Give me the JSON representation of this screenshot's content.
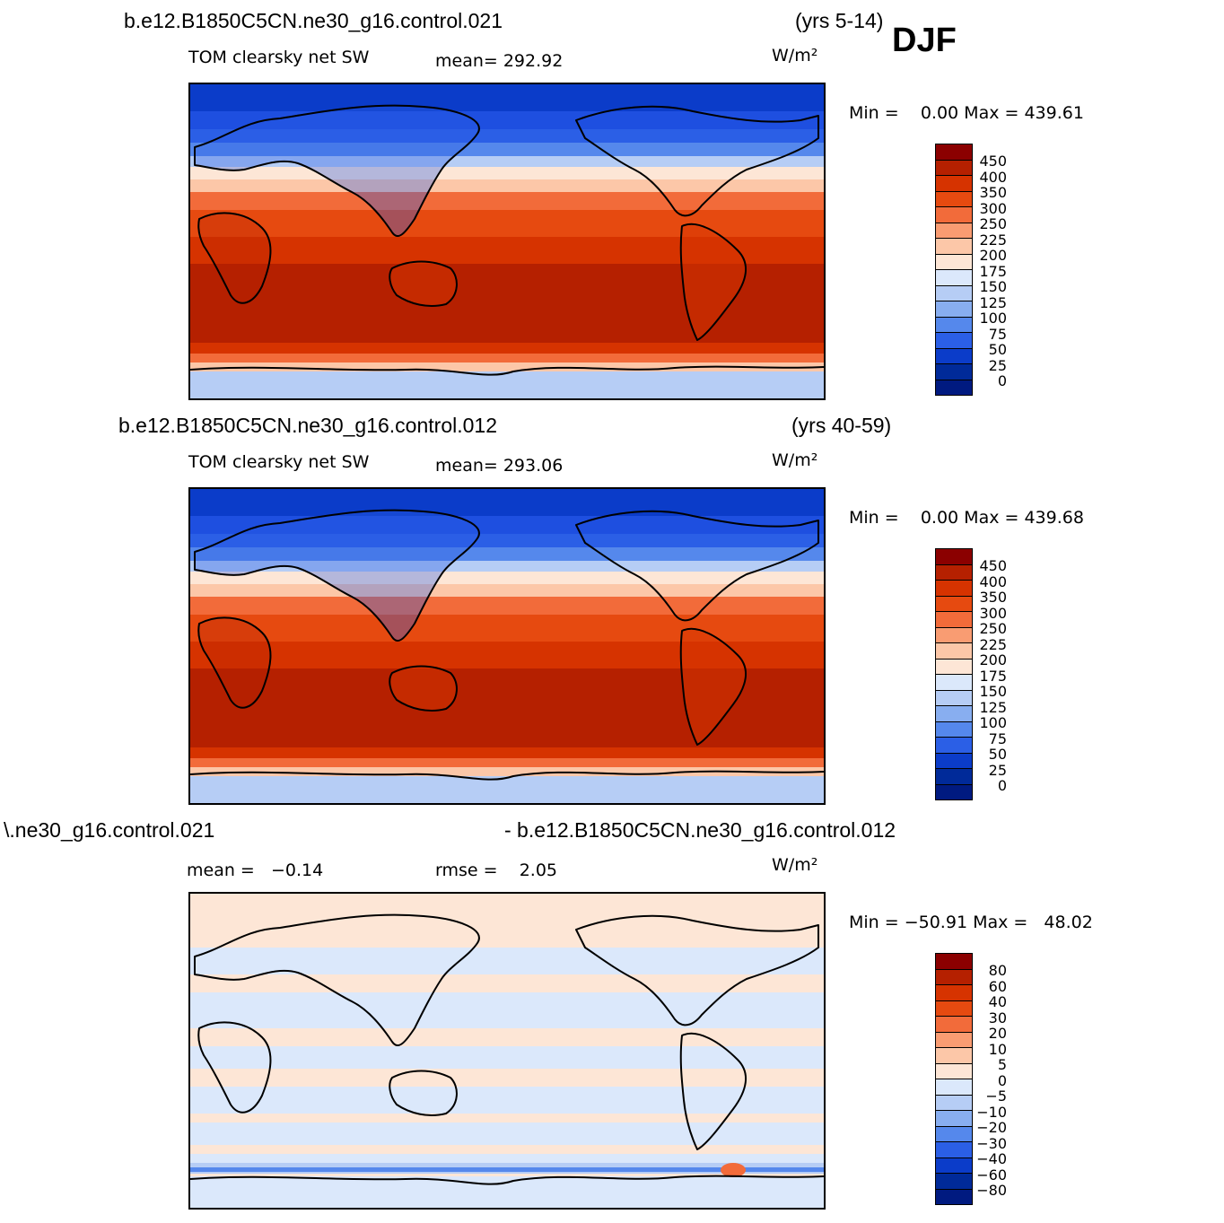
{
  "season": "DJF",
  "chart_data": [
    {
      "type": "heatmap",
      "title": "b.e12.B1850C5CN.ne30_g16.control.021",
      "years": "(yrs 5-14)",
      "variable": "TOM clearsky net SW",
      "units": "W/m²",
      "mean_label": "mean= 292.92",
      "minmax_label": "Min =    0.00 Max = 439.61",
      "stats": {
        "mean": 292.92,
        "min": 0.0,
        "max": 439.61
      },
      "colorbar": {
        "levels": [
          "450",
          "400",
          "350",
          "300",
          "250",
          "225",
          "200",
          "175",
          "150",
          "125",
          "100",
          "75",
          "50",
          "25",
          "0"
        ],
        "colors": [
          "#8b0000",
          "#b52000",
          "#d63300",
          "#e64a10",
          "#f26b3a",
          "#f99c72",
          "#fcc7a8",
          "#fde6d6",
          "#dbe8fb",
          "#b6cdf5",
          "#88aef0",
          "#5588ec",
          "#2b5fe6",
          "#0b3cc9",
          "#002a99",
          "#001a80"
        ]
      }
    },
    {
      "type": "heatmap",
      "title": "b.e12.B1850C5CN.ne30_g16.control.012",
      "years": "(yrs 40-59)",
      "variable": "TOM clearsky net SW",
      "units": "W/m²",
      "mean_label": "mean= 293.06",
      "minmax_label": "Min =    0.00 Max = 439.68",
      "stats": {
        "mean": 293.06,
        "min": 0.0,
        "max": 439.68
      },
      "colorbar": {
        "levels": [
          "450",
          "400",
          "350",
          "300",
          "250",
          "225",
          "200",
          "175",
          "150",
          "125",
          "100",
          "75",
          "50",
          "25",
          "0"
        ],
        "colors": [
          "#8b0000",
          "#b52000",
          "#d63300",
          "#e64a10",
          "#f26b3a",
          "#f99c72",
          "#fcc7a8",
          "#fde6d6",
          "#dbe8fb",
          "#b6cdf5",
          "#88aef0",
          "#5588ec",
          "#2b5fe6",
          "#0b3cc9",
          "#002a99",
          "#001a80"
        ]
      }
    },
    {
      "type": "heatmap",
      "title_left": "\\.ne30_g16.control.021",
      "title_right": "- b.e12.B1850C5CN.ne30_g16.control.012",
      "units": "W/m²",
      "mean_label": "mean =   −0.14",
      "rmse_label": "rmse =    2.05",
      "minmax_label": "Min = −50.91 Max =   48.02",
      "stats": {
        "mean": -0.14,
        "rmse": 2.05,
        "min": -50.91,
        "max": 48.02
      },
      "colorbar": {
        "levels": [
          "80",
          "60",
          "40",
          "30",
          "20",
          "10",
          "5",
          "0",
          "−5",
          "−10",
          "−20",
          "−30",
          "−40",
          "−60",
          "−80"
        ],
        "colors": [
          "#8b0000",
          "#b52000",
          "#d63300",
          "#e64a10",
          "#f26b3a",
          "#f99c72",
          "#fcc7a8",
          "#fde6d6",
          "#dbe8fb",
          "#b6cdf5",
          "#88aef0",
          "#5588ec",
          "#2b5fe6",
          "#0b3cc9",
          "#002a99",
          "#001a80"
        ]
      }
    }
  ]
}
